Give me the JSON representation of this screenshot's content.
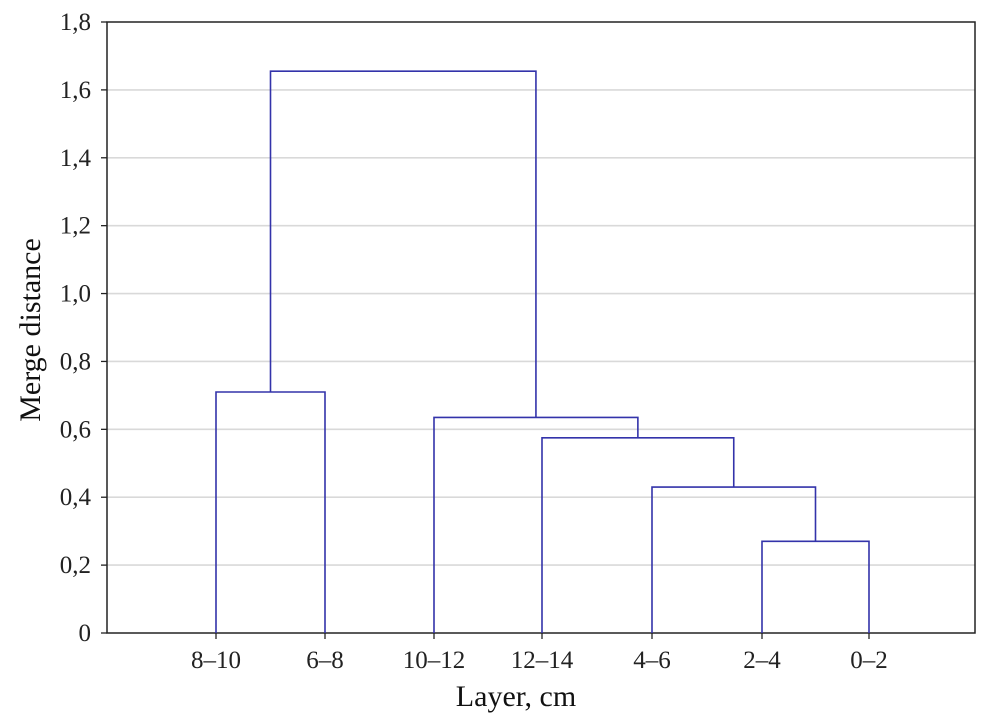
{
  "chart_data": {
    "type": "dendrogram",
    "title": "",
    "xlabel": "Layer, cm",
    "ylabel": "Merge distance",
    "ylim": [
      0,
      1.8
    ],
    "yticks": [
      "0",
      "0,2",
      "0,4",
      "0,6",
      "0,8",
      "1,0",
      "1,2",
      "1,4",
      "1,6",
      "1,8"
    ],
    "ytick_values": [
      0,
      0.2,
      0.4,
      0.6,
      0.8,
      1.0,
      1.2,
      1.4,
      1.6,
      1.8
    ],
    "leaves": [
      "8–10",
      "6–8",
      "10–12",
      "12–14",
      "4–6",
      "2–4",
      "0–2"
    ],
    "merges": [
      {
        "left": "2–4",
        "right": "0–2",
        "height": 0.27
      },
      {
        "left": "4–6",
        "right": "cluster-1",
        "height": 0.43
      },
      {
        "left": "12–14",
        "right": "cluster-2",
        "height": 0.575
      },
      {
        "left": "10–12",
        "right": "cluster-3",
        "height": 0.635
      },
      {
        "left": "8–10",
        "right": "6–8",
        "height": 0.71
      },
      {
        "left": "cluster-5",
        "right": "cluster-4",
        "height": 1.655
      }
    ],
    "grid": true,
    "line_color": "#3333aa",
    "grid_color": "#d9d9d9"
  }
}
